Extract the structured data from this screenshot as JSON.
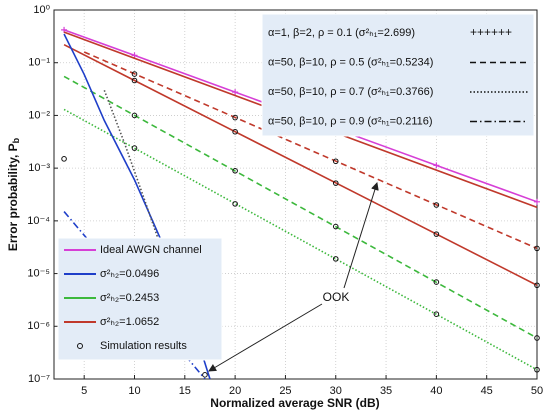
{
  "chart_data": {
    "type": "line",
    "xlabel": "Normalized average SNR (dB)",
    "ylabel": "Error probability, P",
    "ylabel_sub": "b",
    "xlim": [
      2,
      50
    ],
    "ylim": [
      1e-07,
      1
    ],
    "log_y": true,
    "grid": true,
    "xticks": [
      5,
      10,
      15,
      20,
      25,
      30,
      35,
      40,
      45,
      50
    ],
    "yticks": [
      {
        "value": 1e-07,
        "label": "10⁻⁷"
      },
      {
        "value": 1e-06,
        "label": "10⁻⁶"
      },
      {
        "value": 1e-05,
        "label": "10⁻⁵"
      },
      {
        "value": 0.0001,
        "label": "10⁻⁴"
      },
      {
        "value": 0.001,
        "label": "10⁻³"
      },
      {
        "value": 0.01,
        "label": "10⁻²"
      },
      {
        "value": 0.1,
        "label": "10⁻¹"
      },
      {
        "value": 1,
        "label": "10⁰"
      }
    ],
    "series": [
      {
        "color": "#d63fd6",
        "dash": "solid",
        "marker": "plus",
        "x": [
          3,
          10,
          20,
          30,
          40,
          50
        ],
        "values": [
          0.42,
          0.138,
          0.0277,
          0.0056,
          0.00113,
          0.00023
        ]
      },
      {
        "color": "#c0392b",
        "dash": "solid",
        "x": [
          3,
          50
        ],
        "values": [
          0.38,
          0.00018
        ]
      },
      {
        "color": "#c0392b",
        "dash": "dashed",
        "x": [
          5,
          50
        ],
        "values": [
          0.16,
          3e-05
        ]
      },
      {
        "color": "#c0392b",
        "dash": "solid",
        "x": [
          3,
          50
        ],
        "values": [
          0.22,
          6e-06
        ]
      },
      {
        "color": "#3cb83c",
        "dash": "dashed",
        "x": [
          3,
          50
        ],
        "values": [
          0.055,
          6e-07
        ]
      },
      {
        "color": "#3cb83c",
        "dash": "dotted",
        "x": [
          3,
          50
        ],
        "values": [
          0.013,
          1.5e-07
        ]
      },
      {
        "color": "#1f3fc9",
        "dash": "solid",
        "x": [
          3,
          5,
          7,
          10,
          13,
          16,
          17.5
        ],
        "values": [
          0.35,
          0.06,
          0.008,
          0.0006,
          3e-05,
          8e-07,
          1e-07
        ]
      },
      {
        "color": "#1f3fc9",
        "dash": "dashdot",
        "x": [
          3,
          10,
          17
        ],
        "values": [
          0.00015,
          4e-06,
          1e-07
        ]
      },
      {
        "color": "#555555",
        "dash": "dotted",
        "x": [
          7,
          9,
          11,
          13,
          15
        ],
        "values": [
          0.03,
          0.003,
          0.00025,
          2e-05,
          1.5e-06
        ]
      }
    ],
    "simulation": {
      "x": [
        10,
        20,
        30,
        40,
        50,
        10,
        20,
        30,
        40,
        50,
        10,
        20,
        30,
        40,
        50,
        10,
        20,
        30,
        40,
        50,
        3,
        15,
        17
      ],
      "values": [
        0.046,
        0.0049,
        0.00052,
        5.6e-05,
        6e-06,
        0.01,
        0.00089,
        7.8e-05,
        6.9e-06,
        6e-07,
        0.0024,
        0.00021,
        1.9e-05,
        1.7e-06,
        1.5e-07,
        0.061,
        0.0091,
        0.00135,
        0.0002,
        3e-05,
        0.0015,
        5e-07,
        1.2e-07
      ]
    },
    "legend_top": [
      {
        "label": "α=1, β=2, ρ = 0.1 (σ²ₕ₁=2.699)",
        "sample": "++++++"
      },
      {
        "label": "α=50, β=10, ρ = 0.5 (σ²ₕ₁=0.5234)",
        "dash": "dashed"
      },
      {
        "label": "α=50, β=10, ρ = 0.7 (σ²ₕ₁=0.3766)",
        "dash": "dotted"
      },
      {
        "label": "α=50, β=10, ρ = 0.9 (σ²ₕ₁=0.2116)",
        "dash": "dashdot"
      }
    ],
    "legend_bottom": [
      {
        "label": "Ideal AWGN channel",
        "color": "#d63fd6"
      },
      {
        "label": "σ²ₕ₂=0.0496",
        "color": "#1f3fc9"
      },
      {
        "label": "σ²ₕ₂=0.2453",
        "color": "#3cb83c"
      },
      {
        "label": "σ²ₕ₂=1.0652",
        "color": "#c0392b"
      },
      {
        "label": "Simulation results",
        "marker": "circle"
      }
    ],
    "annotation": "OOK"
  }
}
